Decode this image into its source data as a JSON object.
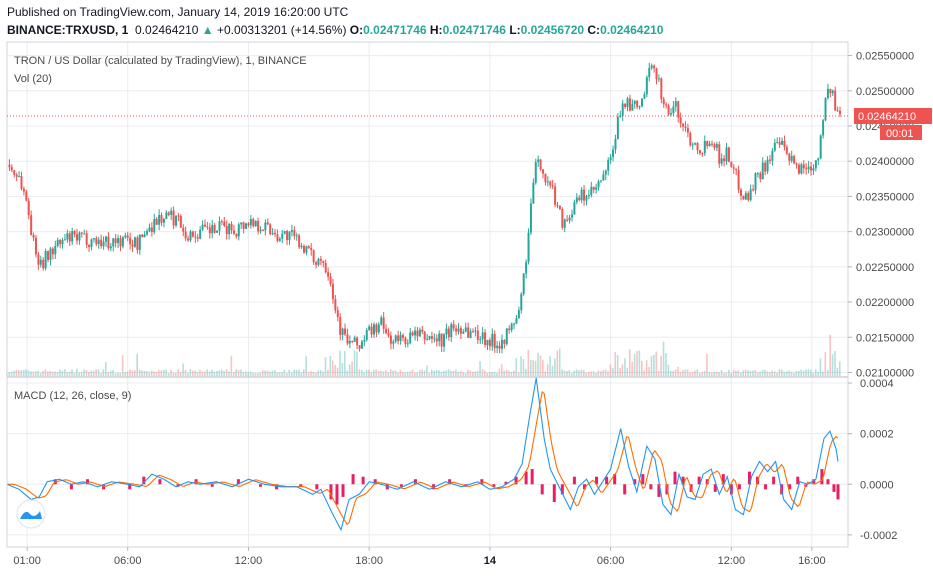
{
  "header": {
    "published": "Published on TradingView.com, January 14, 2019 16:20:00 UTC",
    "symbol": "BINANCE:TRXUSD, 1",
    "price": "0.02464210",
    "arrow": "▲",
    "change": "+0.00313201 (+14.56%)",
    "o_label": "O:",
    "o_value": "0.02471746",
    "h_label": "H:",
    "h_value": "0.02471746",
    "l_label": "L:",
    "l_value": "0.02456720",
    "c_label": "C:",
    "c_value": "0.02464210"
  },
  "colors": {
    "up": "#26a69a",
    "down": "#ef5350",
    "macd": "#2196f3",
    "signal": "#ff6d00",
    "hist": "#e91e63",
    "grid": "#e8ecf0",
    "price_line": "#ef5350"
  },
  "chart_data": [
    {
      "type": "candlestick",
      "title": "TRON / US Dollar (calculated by TradingView), 1, BINANCE",
      "y_ticks": [
        "0.02550000",
        "0.02500000",
        "0.02450000",
        "0.02400000",
        "0.02350000",
        "0.02300000",
        "0.02250000",
        "0.02200000",
        "0.02150000",
        "0.02100000"
      ],
      "ylim": [
        0.02095,
        0.02565
      ],
      "x_ticks": [
        "01:00",
        "06:00",
        "12:00",
        "18:00",
        "14",
        "06:00",
        "12:00",
        "16:00"
      ],
      "x_ticks_hours": [
        1,
        6,
        12,
        18,
        24,
        30,
        36,
        40
      ],
      "bold_tick": "14",
      "last_price_label": "0.02464210",
      "countdown_label": "00:01",
      "close_path": [
        [
          0.0,
          0.02395
        ],
        [
          0.6,
          0.02378
        ],
        [
          1.0,
          0.0234
        ],
        [
          1.4,
          0.02268
        ],
        [
          1.8,
          0.02258
        ],
        [
          2.3,
          0.02275
        ],
        [
          3.0,
          0.0229
        ],
        [
          3.8,
          0.0229
        ],
        [
          5.0,
          0.02285
        ],
        [
          6.0,
          0.02288
        ],
        [
          6.5,
          0.02282
        ],
        [
          7.0,
          0.02305
        ],
        [
          7.5,
          0.02318
        ],
        [
          8.0,
          0.02322
        ],
        [
          8.6,
          0.02316
        ],
        [
          9.0,
          0.02292
        ],
        [
          9.6,
          0.023
        ],
        [
          10.3,
          0.02302
        ],
        [
          10.8,
          0.02306
        ],
        [
          11.3,
          0.02302
        ],
        [
          12.0,
          0.02315
        ],
        [
          12.8,
          0.02308
        ],
        [
          13.5,
          0.02295
        ],
        [
          14.0,
          0.02295
        ],
        [
          14.7,
          0.02282
        ],
        [
          15.2,
          0.0226
        ],
        [
          15.6,
          0.02262
        ],
        [
          16.0,
          0.02245
        ],
        [
          16.3,
          0.02195
        ],
        [
          16.6,
          0.02158
        ],
        [
          17.0,
          0.02142
        ],
        [
          17.5,
          0.02138
        ],
        [
          18.0,
          0.02158
        ],
        [
          18.6,
          0.02168
        ],
        [
          19.0,
          0.02148
        ],
        [
          19.5,
          0.02145
        ],
        [
          20.2,
          0.02152
        ],
        [
          21.0,
          0.0215
        ],
        [
          21.6,
          0.02145
        ],
        [
          22.0,
          0.0216
        ],
        [
          22.6,
          0.02165
        ],
        [
          23.0,
          0.02158
        ],
        [
          23.6,
          0.02152
        ],
        [
          24.0,
          0.02145
        ],
        [
          24.4,
          0.02142
        ],
        [
          25.0,
          0.02158
        ],
        [
          25.5,
          0.02192
        ],
        [
          25.9,
          0.02288
        ],
        [
          26.2,
          0.02385
        ],
        [
          26.5,
          0.024
        ],
        [
          26.8,
          0.02372
        ],
        [
          27.2,
          0.02352
        ],
        [
          27.6,
          0.02315
        ],
        [
          28.0,
          0.02325
        ],
        [
          28.5,
          0.0235
        ],
        [
          29.0,
          0.02352
        ],
        [
          29.5,
          0.02368
        ],
        [
          30.0,
          0.024
        ],
        [
          30.3,
          0.02445
        ],
        [
          30.6,
          0.02488
        ],
        [
          31.0,
          0.02475
        ],
        [
          31.5,
          0.02478
        ],
        [
          31.9,
          0.02522
        ],
        [
          32.2,
          0.02535
        ],
        [
          32.5,
          0.025
        ],
        [
          32.8,
          0.02468
        ],
        [
          33.2,
          0.02478
        ],
        [
          33.6,
          0.0245
        ],
        [
          34.0,
          0.0243
        ],
        [
          34.6,
          0.02418
        ],
        [
          35.0,
          0.02438
        ],
        [
          35.4,
          0.02405
        ],
        [
          35.8,
          0.02412
        ],
        [
          36.2,
          0.0238
        ],
        [
          36.5,
          0.02358
        ],
        [
          36.8,
          0.02348
        ],
        [
          37.2,
          0.02375
        ],
        [
          37.6,
          0.02392
        ],
        [
          38.0,
          0.02412
        ],
        [
          38.4,
          0.02425
        ],
        [
          38.8,
          0.02405
        ],
        [
          39.2,
          0.02392
        ],
        [
          39.6,
          0.0239
        ],
        [
          40.0,
          0.02395
        ],
        [
          40.3,
          0.02405
        ],
        [
          40.6,
          0.02478
        ],
        [
          40.9,
          0.02505
        ],
        [
          41.2,
          0.02472
        ],
        [
          41.4,
          0.02464
        ]
      ]
    },
    {
      "type": "bar",
      "title": "Vol (20)"
    },
    {
      "type": "line",
      "title": "MACD (12, 26, close, 9)",
      "y_ticks": [
        "0.0004",
        "0.0002",
        "0.0000",
        "-0.0002"
      ],
      "ylim": [
        -0.00024,
        0.00042
      ],
      "macd_path": [
        [
          0.0,
          0.0
        ],
        [
          0.6,
          -2e-05
        ],
        [
          1.2,
          -6e-05
        ],
        [
          1.6,
          -5e-05
        ],
        [
          2.0,
          1e-05
        ],
        [
          2.6,
          2e-05
        ],
        [
          3.2,
          0.0
        ],
        [
          3.8,
          1e-05
        ],
        [
          4.5,
          -1e-05
        ],
        [
          5.2,
          1e-05
        ],
        [
          6.0,
          0.0
        ],
        [
          6.6,
          -1e-05
        ],
        [
          7.2,
          4e-05
        ],
        [
          7.8,
          2e-05
        ],
        [
          8.4,
          -1e-05
        ],
        [
          9.0,
          1e-05
        ],
        [
          9.6,
          0.0
        ],
        [
          10.4,
          1e-05
        ],
        [
          11.2,
          -1e-05
        ],
        [
          12.0,
          2e-05
        ],
        [
          12.8,
          0.0
        ],
        [
          13.6,
          -1e-05
        ],
        [
          14.4,
          -1e-05
        ],
        [
          15.2,
          -4e-05
        ],
        [
          15.6,
          -2e-05
        ],
        [
          16.2,
          -0.00012
        ],
        [
          16.6,
          -0.00018
        ],
        [
          17.0,
          -6e-05
        ],
        [
          17.5,
          -4e-05
        ],
        [
          18.0,
          1e-05
        ],
        [
          18.6,
          0.0
        ],
        [
          19.4,
          -2e-05
        ],
        [
          20.2,
          1e-05
        ],
        [
          21.0,
          -2e-05
        ],
        [
          21.8,
          1e-05
        ],
        [
          22.6,
          -1e-05
        ],
        [
          23.4,
          1e-05
        ],
        [
          24.0,
          -2e-05
        ],
        [
          24.6,
          -1e-05
        ],
        [
          25.2,
          2e-05
        ],
        [
          25.6,
          8e-05
        ],
        [
          26.0,
          0.00028
        ],
        [
          26.3,
          0.00042
        ],
        [
          26.7,
          0.00018
        ],
        [
          27.0,
          6e-05
        ],
        [
          27.5,
          -2e-05
        ],
        [
          28.0,
          -0.0001
        ],
        [
          28.4,
          -1e-05
        ],
        [
          28.8,
          2e-05
        ],
        [
          29.2,
          -4e-05
        ],
        [
          29.6,
          1e-05
        ],
        [
          30.0,
          6e-05
        ],
        [
          30.5,
          0.00022
        ],
        [
          30.9,
          7e-05
        ],
        [
          31.3,
          -3e-05
        ],
        [
          31.8,
          0.00015
        ],
        [
          32.2,
          0.0001
        ],
        [
          32.6,
          -8e-05
        ],
        [
          33.0,
          -0.00012
        ],
        [
          33.4,
          4e-05
        ],
        [
          33.8,
          -5e-05
        ],
        [
          34.2,
          -6e-05
        ],
        [
          34.6,
          4e-05
        ],
        [
          35.0,
          6e-05
        ],
        [
          35.4,
          -4e-05
        ],
        [
          35.8,
          3e-05
        ],
        [
          36.2,
          -0.0001
        ],
        [
          36.6,
          -0.00012
        ],
        [
          37.0,
          3e-05
        ],
        [
          37.4,
          9e-05
        ],
        [
          37.8,
          5e-05
        ],
        [
          38.2,
          9e-05
        ],
        [
          38.6,
          -6e-05
        ],
        [
          39.0,
          -0.0001
        ],
        [
          39.4,
          1e-05
        ],
        [
          39.8,
          0.0
        ],
        [
          40.2,
          2e-05
        ],
        [
          40.6,
          0.00018
        ],
        [
          40.9,
          0.00021
        ],
        [
          41.2,
          0.00014
        ],
        [
          41.4,
          4e-05
        ]
      ],
      "signal_lag": 0.35,
      "hist_spikes": [
        [
          2.4,
          2e-05
        ],
        [
          3.2,
          -2e-05
        ],
        [
          4.0,
          2e-05
        ],
        [
          4.8,
          -2e-05
        ],
        [
          6.1,
          -2e-05
        ],
        [
          6.8,
          3e-05
        ],
        [
          7.6,
          2e-05
        ],
        [
          8.5,
          -1e-05
        ],
        [
          9.4,
          2e-05
        ],
        [
          10.2,
          -1e-05
        ],
        [
          11.5,
          2e-05
        ],
        [
          12.6,
          -1e-05
        ],
        [
          13.4,
          -2e-05
        ],
        [
          14.6,
          -1e-05
        ],
        [
          15.4,
          -2e-05
        ],
        [
          16.1,
          -6e-05
        ],
        [
          16.4,
          -8e-05
        ],
        [
          16.7,
          -5e-05
        ],
        [
          17.2,
          4e-05
        ],
        [
          17.7,
          3e-05
        ],
        [
          18.3,
          2e-05
        ],
        [
          18.9,
          -2e-05
        ],
        [
          19.6,
          -1e-05
        ],
        [
          20.3,
          2e-05
        ],
        [
          21.2,
          -2e-05
        ],
        [
          22.0,
          2e-05
        ],
        [
          22.8,
          -1e-05
        ],
        [
          23.6,
          2e-05
        ],
        [
          24.2,
          -1e-05
        ],
        [
          24.8,
          1e-05
        ],
        [
          25.3,
          3e-05
        ],
        [
          25.8,
          5e-05
        ],
        [
          26.1,
          6e-05
        ],
        [
          26.6,
          -4e-05
        ],
        [
          27.2,
          -7e-05
        ],
        [
          27.6,
          -4e-05
        ],
        [
          28.2,
          3e-05
        ],
        [
          28.7,
          -2e-05
        ],
        [
          29.3,
          3e-05
        ],
        [
          29.8,
          3e-05
        ],
        [
          30.2,
          4e-05
        ],
        [
          30.7,
          -4e-05
        ],
        [
          31.2,
          2e-05
        ],
        [
          31.6,
          4e-05
        ],
        [
          32.0,
          -2e-05
        ],
        [
          32.4,
          -5e-05
        ],
        [
          32.8,
          -4e-05
        ],
        [
          33.2,
          5e-05
        ],
        [
          33.6,
          3e-05
        ],
        [
          34.0,
          -3e-05
        ],
        [
          34.4,
          3e-05
        ],
        [
          34.8,
          2e-05
        ],
        [
          35.2,
          -3e-05
        ],
        [
          35.6,
          4e-05
        ],
        [
          36.0,
          -4e-05
        ],
        [
          36.4,
          -2e-05
        ],
        [
          36.9,
          5e-05
        ],
        [
          37.3,
          3e-05
        ],
        [
          37.7,
          -2e-05
        ],
        [
          38.1,
          3e-05
        ],
        [
          38.5,
          -4e-05
        ],
        [
          38.9,
          -2e-05
        ],
        [
          39.3,
          3e-05
        ],
        [
          39.7,
          -1e-05
        ],
        [
          40.1,
          2e-05
        ],
        [
          40.5,
          6e-05
        ],
        [
          40.8,
          2e-05
        ],
        [
          41.1,
          -3e-05
        ],
        [
          41.3,
          -6e-05
        ]
      ]
    }
  ]
}
